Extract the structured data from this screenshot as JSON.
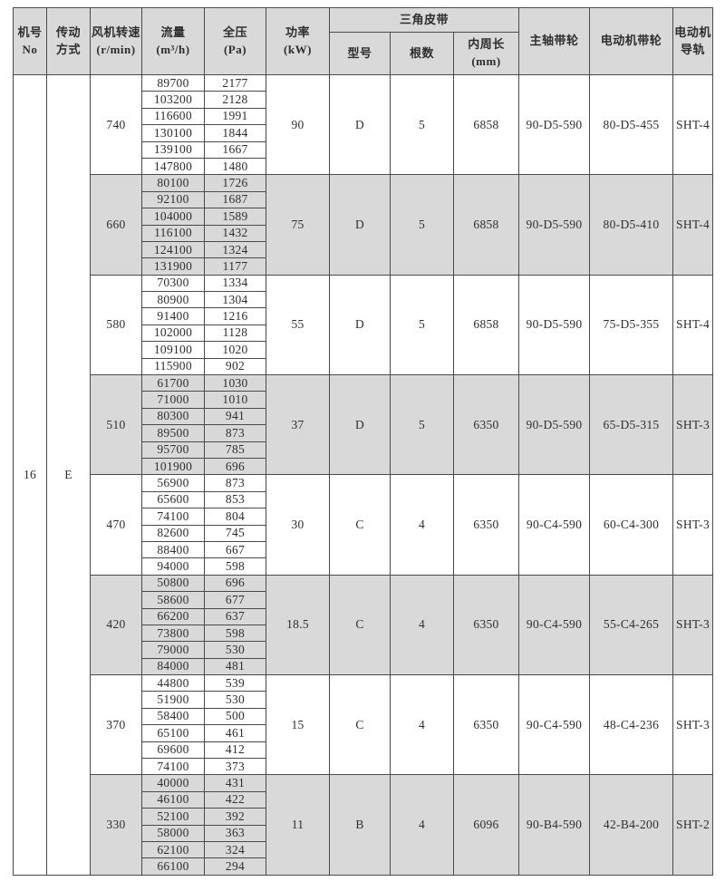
{
  "table": {
    "header": {
      "machine_no": "机号\nNo",
      "drive_type": "传动\n方式",
      "fan_speed": "风机转速\n(r/min)",
      "flow": "流量\n(m³/h)",
      "pressure": "全压\n(Pa)",
      "power": "功率\n(kW)",
      "v_belt": "三角皮带",
      "belt_model": "型号",
      "belt_count": "根数",
      "belt_inner_length": "内周长\n(mm)",
      "main_shaft_pulley": "主轴带轮",
      "motor_pulley": "电动机带轮",
      "motor_rail": "电动机\n导轨"
    },
    "machine_no": "16",
    "drive_type": "E",
    "groups": [
      {
        "speed": "740",
        "power": "90",
        "belt_model": "D",
        "belt_count": "5",
        "belt_inner_length": "6858",
        "main_shaft_pulley": "90-D5-590",
        "motor_pulley": "80-D5-455",
        "motor_rail": "SHT-4",
        "rows": [
          [
            "89700",
            "2177"
          ],
          [
            "103200",
            "2128"
          ],
          [
            "116600",
            "1991"
          ],
          [
            "130100",
            "1844"
          ],
          [
            "139100",
            "1667"
          ],
          [
            "147800",
            "1480"
          ]
        ]
      },
      {
        "speed": "660",
        "power": "75",
        "belt_model": "D",
        "belt_count": "5",
        "belt_inner_length": "6858",
        "main_shaft_pulley": "90-D5-590",
        "motor_pulley": "80-D5-410",
        "motor_rail": "SHT-4",
        "rows": [
          [
            "80100",
            "1726"
          ],
          [
            "92100",
            "1687"
          ],
          [
            "104000",
            "1589"
          ],
          [
            "116100",
            "1432"
          ],
          [
            "124100",
            "1324"
          ],
          [
            "131900",
            "1177"
          ]
        ]
      },
      {
        "speed": "580",
        "power": "55",
        "belt_model": "D",
        "belt_count": "5",
        "belt_inner_length": "6858",
        "main_shaft_pulley": "90-D5-590",
        "motor_pulley": "75-D5-355",
        "motor_rail": "SHT-4",
        "rows": [
          [
            "70300",
            "1334"
          ],
          [
            "80900",
            "1304"
          ],
          [
            "91400",
            "1216"
          ],
          [
            "102000",
            "1128"
          ],
          [
            "109100",
            "1020"
          ],
          [
            "115900",
            "902"
          ]
        ]
      },
      {
        "speed": "510",
        "power": "37",
        "belt_model": "D",
        "belt_count": "5",
        "belt_inner_length": "6350",
        "main_shaft_pulley": "90-D5-590",
        "motor_pulley": "65-D5-315",
        "motor_rail": "SHT-3",
        "rows": [
          [
            "61700",
            "1030"
          ],
          [
            "71000",
            "1010"
          ],
          [
            "80300",
            "941"
          ],
          [
            "89500",
            "873"
          ],
          [
            "95700",
            "785"
          ],
          [
            "101900",
            "696"
          ]
        ]
      },
      {
        "speed": "470",
        "power": "30",
        "belt_model": "C",
        "belt_count": "4",
        "belt_inner_length": "6350",
        "main_shaft_pulley": "90-C4-590",
        "motor_pulley": "60-C4-300",
        "motor_rail": "SHT-3",
        "rows": [
          [
            "56900",
            "873"
          ],
          [
            "65600",
            "853"
          ],
          [
            "74100",
            "804"
          ],
          [
            "82600",
            "745"
          ],
          [
            "88400",
            "667"
          ],
          [
            "94000",
            "598"
          ]
        ]
      },
      {
        "speed": "420",
        "power": "18.5",
        "belt_model": "C",
        "belt_count": "4",
        "belt_inner_length": "6350",
        "main_shaft_pulley": "90-C4-590",
        "motor_pulley": "55-C4-265",
        "motor_rail": "SHT-3",
        "rows": [
          [
            "50800",
            "696"
          ],
          [
            "58600",
            "677"
          ],
          [
            "66200",
            "637"
          ],
          [
            "73800",
            "598"
          ],
          [
            "79000",
            "530"
          ],
          [
            "84000",
            "481"
          ]
        ]
      },
      {
        "speed": "370",
        "power": "15",
        "belt_model": "C",
        "belt_count": "4",
        "belt_inner_length": "6350",
        "main_shaft_pulley": "90-C4-590",
        "motor_pulley": "48-C4-236",
        "motor_rail": "SHT-3",
        "rows": [
          [
            "44800",
            "539"
          ],
          [
            "51900",
            "530"
          ],
          [
            "58400",
            "500"
          ],
          [
            "65100",
            "461"
          ],
          [
            "69600",
            "412"
          ],
          [
            "74100",
            "373"
          ]
        ]
      },
      {
        "speed": "330",
        "power": "11",
        "belt_model": "B",
        "belt_count": "4",
        "belt_inner_length": "6096",
        "main_shaft_pulley": "90-B4-590",
        "motor_pulley": "42-B4-200",
        "motor_rail": "SHT-2",
        "rows": [
          [
            "40000",
            "431"
          ],
          [
            "46100",
            "422"
          ],
          [
            "52100",
            "392"
          ],
          [
            "58000",
            "363"
          ],
          [
            "62100",
            "324"
          ],
          [
            "66100",
            "294"
          ]
        ]
      }
    ]
  }
}
